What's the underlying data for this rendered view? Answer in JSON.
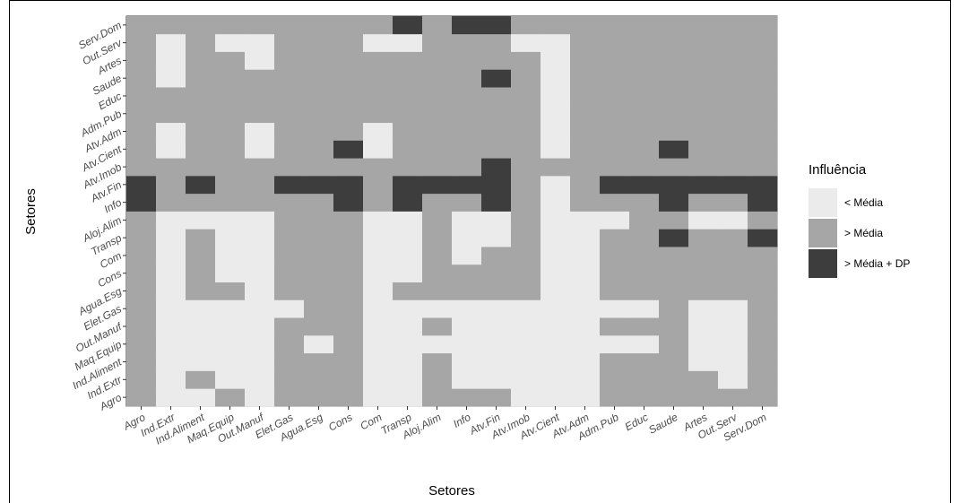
{
  "chart_data": {
    "type": "heatmap",
    "x_label": "Setores",
    "y_label": "Setores",
    "legend_title": "Influência",
    "x": [
      "Agro",
      "Ind.Extr",
      "Ind.Aliment",
      "Maq.Equip",
      "Out.Manuf",
      "Elet.Gas",
      "Agua.Esg",
      "Cons",
      "Com",
      "Transp",
      "Aloj.Alim",
      "Info",
      "Atv.Fin",
      "Atv.Imob",
      "Atv.Cient",
      "Atv.Adm",
      "Adm.Pub",
      "Educ",
      "Saude",
      "Artes",
      "Out.Serv",
      "Serv.Dom"
    ],
    "y": [
      "Agro",
      "Ind.Extr",
      "Ind.Aliment",
      "Maq.Equip",
      "Out.Manuf",
      "Elet.Gas",
      "Agua.Esg",
      "Cons",
      "Com",
      "Transp",
      "Aloj.Alim",
      "Info",
      "Atv.Fin",
      "Atv.Imob",
      "Atv.Cient",
      "Atv.Adm",
      "Adm.Pub",
      "Educ",
      "Saude",
      "Artes",
      "Out.Serv",
      "Serv.Dom"
    ],
    "levels": [
      {
        "name": "< Média",
        "color": "#ebebeb"
      },
      {
        "name": "> Média",
        "color": "#a6a6a6"
      },
      {
        "name": "> Média + DP",
        "color": "#3d3d3d"
      }
    ],
    "rows": [
      "GLLGLGGGLLGGGLLLGGGGGG",
      "GLGLLGGGLLGLLLLLGGGGLG",
      "GLLLLGGGLLGLLLLLGGGLLG",
      "GLLLLGLGLLLLLLLLLLGLLG",
      "GLLLLGGGLLGLLLLLGGGLLG",
      "GLLLLLGGLLLLLLLLLLGLLG",
      "GLGGLGGGLGGGGGLLGGGGGG",
      "GLGLLGGGLLGGGGLLGGGGGG",
      "GLGLLGGGLLGLGGLLGGGGGG",
      "GLGLLGGGLLGLLGLLGGDGGD",
      "GLLLLGGGLLGLLGLLLGGLLG",
      "DGGGGGGDGDGGDGLGGGDGGD",
      "DGDGGDDDGDDDDGLGDDDDDD",
      "GGGGGGGGGGGGDGGGGGGGGG",
      "GLGGLGGDLGGGGGLGGGDGGG",
      "GLGGLGGGLGGGGGLGGGGGGG",
      "GGGGGGGGGGGGGGLGGGGGGG",
      "GGGGGGGGGGGGGGLGGGGGGG",
      "GLGGGGGGGGGGDGLGGGGGGG",
      "GLGGLGGGGGGGGGLGGGGGGG",
      "GLGLLGGGLLGGGLLGGGGGGG",
      "GGGGGGGGGDGDDGGGGGGGGG"
    ],
    "codes": {
      "L": 0,
      "G": 1,
      "D": 2
    }
  }
}
